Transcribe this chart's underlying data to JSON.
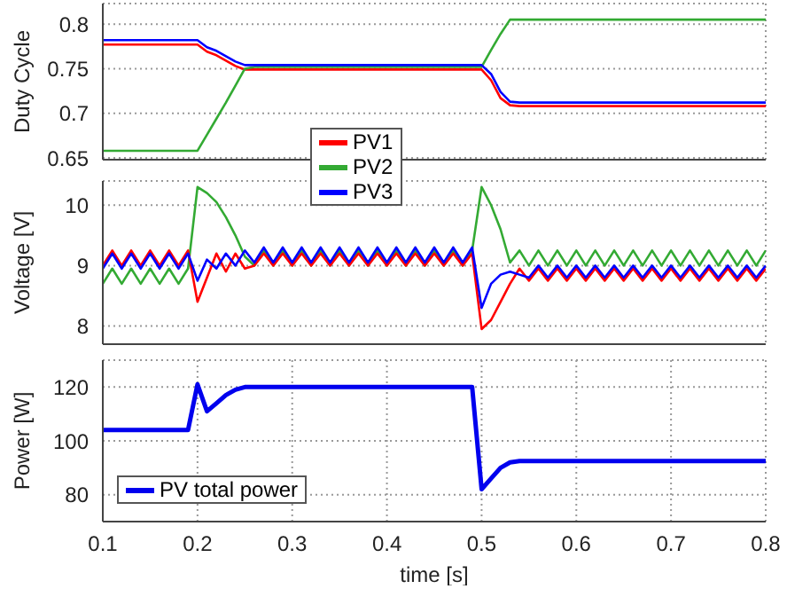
{
  "chart_data": [
    {
      "type": "line",
      "ylabel": "Duty Cycle",
      "x": [
        0.1,
        0.11,
        0.12,
        0.13,
        0.14,
        0.15,
        0.16,
        0.17,
        0.18,
        0.19,
        0.2,
        0.21,
        0.22,
        0.23,
        0.24,
        0.25,
        0.26,
        0.27,
        0.28,
        0.29,
        0.3,
        0.31,
        0.32,
        0.33,
        0.34,
        0.35,
        0.36,
        0.37,
        0.38,
        0.39,
        0.4,
        0.41,
        0.42,
        0.43,
        0.44,
        0.45,
        0.46,
        0.47,
        0.48,
        0.49,
        0.5,
        0.51,
        0.52,
        0.53,
        0.54,
        0.55,
        0.56,
        0.57,
        0.58,
        0.59,
        0.6,
        0.61,
        0.62,
        0.63,
        0.64,
        0.65,
        0.66,
        0.67,
        0.68,
        0.69,
        0.7,
        0.71,
        0.72,
        0.73,
        0.74,
        0.75,
        0.76,
        0.77,
        0.78,
        0.79,
        0.8
      ],
      "series": [
        {
          "name": "PV1",
          "color": "#ff0000",
          "values": [
            0.777,
            0.777,
            0.777,
            0.777,
            0.777,
            0.777,
            0.777,
            0.777,
            0.777,
            0.777,
            0.777,
            0.769,
            0.765,
            0.759,
            0.753,
            0.749,
            0.749,
            0.749,
            0.749,
            0.749,
            0.749,
            0.749,
            0.749,
            0.749,
            0.749,
            0.749,
            0.749,
            0.749,
            0.749,
            0.749,
            0.749,
            0.749,
            0.749,
            0.749,
            0.749,
            0.749,
            0.749,
            0.749,
            0.749,
            0.749,
            0.749,
            0.737,
            0.717,
            0.709,
            0.708,
            0.708,
            0.708,
            0.708,
            0.708,
            0.708,
            0.708,
            0.708,
            0.708,
            0.708,
            0.708,
            0.708,
            0.708,
            0.708,
            0.708,
            0.708,
            0.708,
            0.708,
            0.708,
            0.708,
            0.708,
            0.708,
            0.708,
            0.708,
            0.708,
            0.708,
            0.708
          ]
        },
        {
          "name": "PV2",
          "color": "#33aa33",
          "values": [
            0.658,
            0.658,
            0.658,
            0.658,
            0.658,
            0.658,
            0.658,
            0.658,
            0.658,
            0.658,
            0.658,
            0.676,
            0.694,
            0.712,
            0.731,
            0.75,
            0.752,
            0.752,
            0.752,
            0.752,
            0.752,
            0.752,
            0.752,
            0.752,
            0.752,
            0.752,
            0.752,
            0.752,
            0.752,
            0.752,
            0.752,
            0.752,
            0.752,
            0.752,
            0.752,
            0.752,
            0.752,
            0.752,
            0.752,
            0.752,
            0.752,
            0.771,
            0.789,
            0.805,
            0.805,
            0.805,
            0.805,
            0.805,
            0.805,
            0.805,
            0.805,
            0.805,
            0.805,
            0.805,
            0.805,
            0.805,
            0.805,
            0.805,
            0.805,
            0.805,
            0.805,
            0.805,
            0.805,
            0.805,
            0.805,
            0.805,
            0.805,
            0.805,
            0.805,
            0.805,
            0.805
          ]
        },
        {
          "name": "PV3",
          "color": "#0000ff",
          "values": [
            0.782,
            0.782,
            0.782,
            0.782,
            0.782,
            0.782,
            0.782,
            0.782,
            0.782,
            0.782,
            0.782,
            0.774,
            0.77,
            0.764,
            0.758,
            0.754,
            0.754,
            0.754,
            0.754,
            0.754,
            0.754,
            0.754,
            0.754,
            0.754,
            0.754,
            0.754,
            0.754,
            0.754,
            0.754,
            0.754,
            0.754,
            0.754,
            0.754,
            0.754,
            0.754,
            0.754,
            0.754,
            0.754,
            0.754,
            0.754,
            0.754,
            0.744,
            0.724,
            0.713,
            0.712,
            0.712,
            0.712,
            0.712,
            0.712,
            0.712,
            0.712,
            0.712,
            0.712,
            0.712,
            0.712,
            0.712,
            0.712,
            0.712,
            0.712,
            0.712,
            0.712,
            0.712,
            0.712,
            0.712,
            0.712,
            0.712,
            0.712,
            0.712,
            0.712,
            0.712,
            0.712
          ]
        }
      ],
      "xlim": [
        0.1,
        0.8
      ],
      "xticks": [
        0.1,
        0.2,
        0.3,
        0.4,
        0.5,
        0.6,
        0.7,
        0.8
      ],
      "ylim": [
        0.648,
        0.823
      ],
      "yticks": [
        0.65,
        0.7,
        0.75,
        0.8
      ],
      "grid": true,
      "legend": "bottom",
      "tick_labels": "y"
    },
    {
      "type": "line",
      "ylabel": "Voltage [V]",
      "x": [
        0.1,
        0.11,
        0.12,
        0.13,
        0.14,
        0.15,
        0.16,
        0.17,
        0.18,
        0.19,
        0.2,
        0.21,
        0.22,
        0.23,
        0.24,
        0.25,
        0.26,
        0.27,
        0.28,
        0.29,
        0.3,
        0.31,
        0.32,
        0.33,
        0.34,
        0.35,
        0.36,
        0.37,
        0.38,
        0.39,
        0.4,
        0.41,
        0.42,
        0.43,
        0.44,
        0.45,
        0.46,
        0.47,
        0.48,
        0.49,
        0.5,
        0.51,
        0.52,
        0.53,
        0.54,
        0.55,
        0.56,
        0.57,
        0.58,
        0.59,
        0.6,
        0.61,
        0.62,
        0.63,
        0.64,
        0.65,
        0.66,
        0.67,
        0.68,
        0.69,
        0.7,
        0.71,
        0.72,
        0.73,
        0.74,
        0.75,
        0.76,
        0.77,
        0.78,
        0.79,
        0.8
      ],
      "series": [
        {
          "color": "#33aa33",
          "values": [
            8.7,
            8.95,
            8.7,
            8.95,
            8.7,
            8.95,
            8.7,
            8.95,
            8.7,
            8.95,
            10.3,
            10.2,
            10.05,
            9.8,
            9.5,
            9.15,
            9.0,
            9.25,
            9.0,
            9.25,
            9.0,
            9.25,
            9.0,
            9.25,
            9.0,
            9.25,
            9.0,
            9.25,
            9.0,
            9.25,
            9.0,
            9.25,
            9.0,
            9.25,
            9.0,
            9.25,
            9.0,
            9.25,
            9.0,
            9.25,
            10.3,
            10.0,
            9.6,
            9.05,
            9.25,
            9.0,
            9.25,
            9.0,
            9.25,
            9.0,
            9.25,
            9.0,
            9.25,
            9.0,
            9.25,
            9.0,
            9.25,
            9.0,
            9.25,
            9.0,
            9.25,
            9.0,
            9.25,
            9.0,
            9.25,
            9.0,
            9.25,
            9.0,
            9.25,
            9.0,
            9.25
          ]
        },
        {
          "color": "#ff0000",
          "values": [
            9.0,
            9.25,
            9.0,
            9.25,
            9.0,
            9.25,
            9.0,
            9.25,
            9.0,
            9.25,
            8.4,
            8.8,
            9.2,
            8.9,
            9.2,
            8.95,
            9.0,
            9.2,
            9.0,
            9.2,
            9.0,
            9.2,
            9.0,
            9.2,
            9.0,
            9.2,
            9.0,
            9.2,
            9.0,
            9.2,
            9.0,
            9.2,
            9.0,
            9.2,
            9.0,
            9.2,
            9.0,
            9.2,
            9.0,
            9.2,
            7.95,
            8.1,
            8.4,
            8.7,
            8.95,
            8.75,
            8.95,
            8.75,
            8.95,
            8.75,
            8.95,
            8.75,
            8.95,
            8.75,
            8.95,
            8.75,
            8.95,
            8.75,
            8.95,
            8.75,
            8.95,
            8.75,
            8.95,
            8.75,
            8.95,
            8.75,
            8.95,
            8.75,
            8.95,
            8.75,
            8.95
          ]
        },
        {
          "color": "#0000ff",
          "values": [
            8.95,
            9.2,
            8.95,
            9.2,
            8.95,
            9.2,
            8.95,
            9.2,
            8.95,
            9.2,
            8.75,
            9.1,
            8.95,
            9.2,
            9.0,
            9.25,
            9.05,
            9.3,
            9.05,
            9.3,
            9.05,
            9.3,
            9.05,
            9.3,
            9.05,
            9.3,
            9.05,
            9.3,
            9.05,
            9.3,
            9.05,
            9.3,
            9.05,
            9.3,
            9.05,
            9.3,
            9.05,
            9.3,
            9.05,
            9.3,
            8.3,
            8.7,
            8.85,
            8.9,
            8.85,
            8.8,
            9.0,
            8.8,
            9.0,
            8.8,
            9.0,
            8.8,
            9.0,
            8.8,
            9.0,
            8.8,
            9.0,
            8.8,
            9.0,
            8.8,
            9.0,
            8.8,
            9.0,
            8.8,
            9.0,
            8.8,
            9.0,
            8.8,
            9.0,
            8.8,
            9.0
          ]
        }
      ],
      "xlim": [
        0.1,
        0.8
      ],
      "xticks": [
        0.1,
        0.2,
        0.3,
        0.4,
        0.5,
        0.6,
        0.7,
        0.8
      ],
      "ylim": [
        7.7,
        10.4
      ],
      "yticks": [
        8,
        9,
        10
      ],
      "grid": true,
      "tick_labels": "y"
    },
    {
      "type": "line",
      "xlabel": "time [s]",
      "ylabel": "Power [W]",
      "x": [
        0.1,
        0.11,
        0.12,
        0.13,
        0.14,
        0.15,
        0.16,
        0.17,
        0.18,
        0.19,
        0.2,
        0.21,
        0.22,
        0.23,
        0.24,
        0.25,
        0.26,
        0.27,
        0.28,
        0.29,
        0.3,
        0.31,
        0.32,
        0.33,
        0.34,
        0.35,
        0.36,
        0.37,
        0.38,
        0.39,
        0.4,
        0.41,
        0.42,
        0.43,
        0.44,
        0.45,
        0.46,
        0.47,
        0.48,
        0.49,
        0.5,
        0.51,
        0.52,
        0.53,
        0.54,
        0.55,
        0.56,
        0.57,
        0.58,
        0.59,
        0.6,
        0.61,
        0.62,
        0.63,
        0.64,
        0.65,
        0.66,
        0.67,
        0.68,
        0.69,
        0.7,
        0.71,
        0.72,
        0.73,
        0.74,
        0.75,
        0.76,
        0.77,
        0.78,
        0.79,
        0.8
      ],
      "series": [
        {
          "name": "PV total power",
          "color": "#0000ee",
          "values": [
            104,
            104,
            104,
            104,
            104,
            104,
            104,
            104,
            104,
            104,
            121,
            111,
            114,
            117,
            119,
            120,
            120,
            120,
            120,
            120,
            120,
            120,
            120,
            120,
            120,
            120,
            120,
            120,
            120,
            120,
            120,
            120,
            120,
            120,
            120,
            120,
            120,
            120,
            120,
            120,
            82,
            86,
            90,
            92,
            92.5,
            92.5,
            92.5,
            92.5,
            92.5,
            92.5,
            92.5,
            92.5,
            92.5,
            92.5,
            92.5,
            92.5,
            92.5,
            92.5,
            92.5,
            92.5,
            92.5,
            92.5,
            92.5,
            92.5,
            92.5,
            92.5,
            92.5,
            92.5,
            92.5,
            92.5,
            92.5
          ]
        }
      ],
      "xlim": [
        0.1,
        0.8
      ],
      "xticks": [
        0.1,
        0.2,
        0.3,
        0.4,
        0.5,
        0.6,
        0.7,
        0.8
      ],
      "ylim": [
        70,
        130
      ],
      "yticks": [
        80,
        100,
        120
      ],
      "grid": true,
      "legend": "bottom left"
    }
  ]
}
